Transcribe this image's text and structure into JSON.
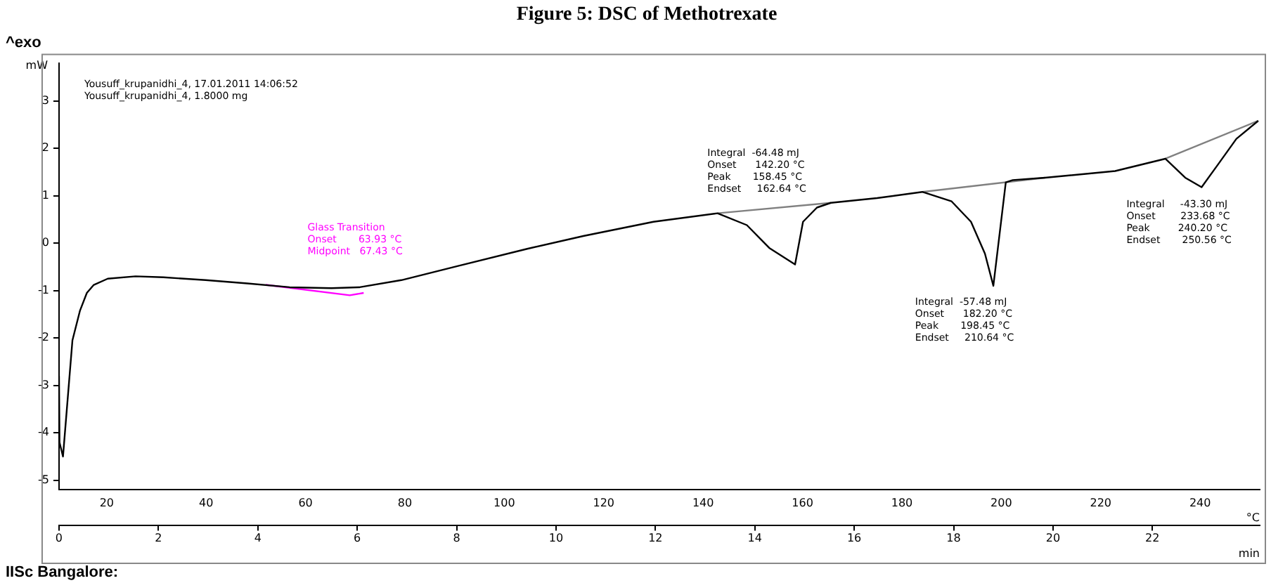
{
  "chart_data": {
    "type": "line",
    "title": "Figure 5: DSC of Methotrexate",
    "ylabel": "mW",
    "xlabel": "°C",
    "x2label": "min",
    "xlim": [
      10.4,
      252
    ],
    "xticks": [
      20,
      40,
      60,
      80,
      100,
      120,
      140,
      160,
      180,
      200,
      220,
      240
    ],
    "x2lim": [
      0,
      24.16
    ],
    "x2ticks": [
      0,
      2,
      4,
      6,
      8,
      10,
      12,
      14,
      16,
      18,
      20,
      22
    ],
    "ylim": [
      -5.2,
      3.8
    ],
    "yticks": [
      -5,
      -4,
      -3,
      -2,
      -1,
      0,
      1,
      2,
      3
    ],
    "grid": false,
    "legend": false,
    "marker": "none",
    "line_style": "solid",
    "series": [
      {
        "color": "#000000",
        "x": [
          10.4,
          10.5,
          11.2,
          13.1,
          14.6,
          16.0,
          17.4,
          20.2,
          25.8,
          31.4,
          39.9,
          48.3,
          56.8,
          65.2,
          70.9,
          79.3,
          90.7,
          104.6,
          115.9,
          130.0,
          142.9,
          148.8,
          153.3,
          158.5,
          160.1,
          162.9,
          165.7,
          175.0,
          184.1,
          190.0,
          193.9,
          196.7,
          198.4,
          200.9,
          202.3,
          208.8,
          222.9,
          233.0,
          237.0,
          240.3,
          243.4,
          247.3,
          251.7
        ],
        "values": [
          -2.8,
          -4.2,
          -4.5,
          -2.05,
          -1.43,
          -1.05,
          -0.88,
          -0.75,
          -0.7,
          -0.72,
          -0.78,
          -0.85,
          -0.93,
          -0.95,
          -0.93,
          -0.78,
          -0.48,
          -0.12,
          0.15,
          0.45,
          0.63,
          0.38,
          -0.1,
          -0.45,
          0.45,
          0.75,
          0.85,
          0.95,
          1.08,
          0.88,
          0.45,
          -0.22,
          -0.9,
          1.28,
          1.33,
          1.38,
          1.52,
          1.78,
          1.38,
          1.18,
          1.63,
          2.2,
          2.58
        ]
      },
      {
        "color": "#808080",
        "x": [
          142.9,
          165.7
        ],
        "values": [
          0.63,
          0.85
        ]
      },
      {
        "color": "#808080",
        "x": [
          184.1,
          208.8
        ],
        "values": [
          1.08,
          1.38
        ]
      },
      {
        "color": "#808080",
        "x": [
          233.0,
          251.7
        ],
        "values": [
          1.78,
          2.58
        ]
      },
      {
        "color": "#ff00ff",
        "x": [
          52.0,
          68.9,
          71.7
        ],
        "values": [
          -0.88,
          -1.1,
          -1.05
        ]
      }
    ],
    "annotations": [
      "^exo",
      "Yousuff_krupanidhi_4, 17.01.2011 14:06:52\nYousuff_krupanidhi_4, 1.8000 mg",
      "IISc Bangalore:",
      "Glass Transition\nOnset       63.93 °C\nMidpoint   67.43 °C",
      "Integral  -64.48 mJ\nOnset      142.20 °C\nPeak       158.45 °C\nEndset     162.64 °C",
      "Integral  -57.48 mJ\nOnset      182.20 °C\nPeak       198.45 °C\nEndset     210.64 °C",
      "Integral     -43.30 mJ\nOnset        233.68 °C\nPeak         240.20 °C\nEndset       250.56 °C"
    ]
  }
}
